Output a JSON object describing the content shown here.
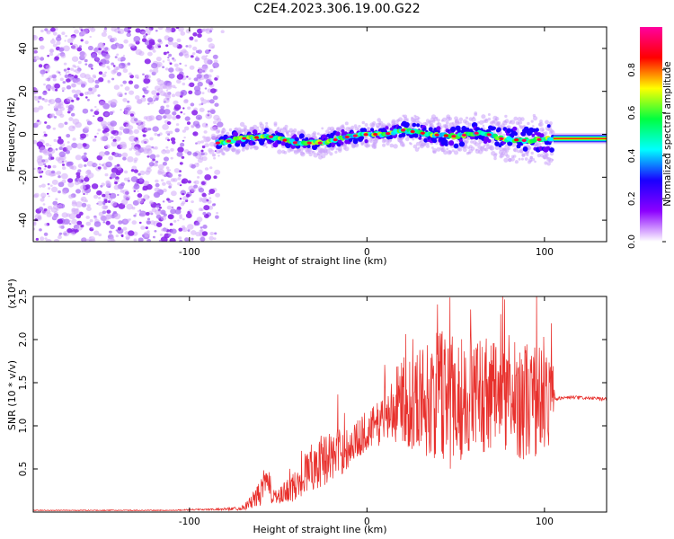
{
  "title": "C2E4.2023.306.19.00.G22",
  "chart_data": [
    {
      "type": "heatmap",
      "xlabel": "Height of straight line (km)",
      "ylabel": "Frequency (Hz)",
      "xlim": [
        -188,
        135
      ],
      "ylim": [
        -50,
        50
      ],
      "x_ticks": [
        -100,
        0,
        100
      ],
      "y_ticks": [
        -40,
        -20,
        0,
        20,
        40
      ],
      "colorbar": {
        "label": "Normalized spectral amplitude",
        "range": [
          0,
          1
        ],
        "ticks": [
          "0.0",
          "0.2",
          "0.4",
          "0.6",
          "0.8"
        ],
        "tick_values": [
          0.0,
          0.2,
          0.4,
          0.6,
          0.8
        ],
        "stops": [
          "#ffffff",
          "#8c00ff",
          "#1a00ff",
          "#00ffff",
          "#00ff40",
          "#ffff00",
          "#ff0000",
          "#ff00a0"
        ]
      },
      "noise_region": {
        "x_range": [
          -188,
          -84
        ],
        "frequency_range": [
          -50,
          50
        ]
      },
      "signal_track": {
        "x": [
          -84,
          -70,
          -55,
          -40,
          -25,
          -10,
          0,
          10,
          20,
          35,
          50,
          65,
          75,
          90,
          105,
          135
        ],
        "frequency": [
          -4,
          -2,
          -1,
          -4,
          -4,
          -1,
          0,
          0,
          2,
          0,
          -1,
          1,
          -2,
          -3,
          -2,
          -2
        ]
      }
    },
    {
      "type": "line",
      "xlabel": "Height of straight line (km)",
      "ylabel": "SNR (10 * v/v)",
      "y_multiplier": "(x10⁴)",
      "xlim": [
        -188,
        135
      ],
      "ylim": [
        0,
        2.5
      ],
      "x_ticks": [
        -100,
        0,
        100
      ],
      "y_ticks": [
        "0.5",
        "1.0",
        "1.5",
        "2.0",
        "2.5"
      ],
      "y_tick_values": [
        0.5,
        1.0,
        1.5,
        2.0,
        2.5
      ],
      "series_color": "#e8302c",
      "series": [
        {
          "x": [
            -188,
            -170,
            -150,
            -130,
            -110,
            -95,
            -85,
            -75,
            -70,
            -65,
            -60,
            -57,
            -54,
            -50,
            -45,
            -40,
            -35,
            -30,
            -25,
            -20,
            -15,
            -10,
            -5,
            0,
            5,
            10,
            15,
            20,
            25,
            30,
            35,
            40,
            45,
            50,
            55,
            60,
            65,
            70,
            75,
            80,
            85,
            90,
            95,
            100,
            103,
            106,
            108,
            115,
            125,
            135
          ],
          "y": [
            0.02,
            0.02,
            0.02,
            0.02,
            0.02,
            0.03,
            0.03,
            0.04,
            0.05,
            0.12,
            0.22,
            0.35,
            0.25,
            0.15,
            0.25,
            0.3,
            0.45,
            0.55,
            0.6,
            0.65,
            0.7,
            0.75,
            0.85,
            0.95,
            1.0,
            1.1,
            1.2,
            1.3,
            1.28,
            1.33,
            1.3,
            1.35,
            1.4,
            1.35,
            1.32,
            1.35,
            1.4,
            1.35,
            1.3,
            1.3,
            1.32,
            1.3,
            1.3,
            1.3,
            1.35,
            1.3,
            1.32,
            1.33,
            1.32,
            1.31
          ],
          "spread": [
            0.005,
            0.005,
            0.005,
            0.005,
            0.005,
            0.01,
            0.01,
            0.02,
            0.03,
            0.08,
            0.15,
            0.22,
            0.15,
            0.1,
            0.15,
            0.18,
            0.25,
            0.3,
            0.3,
            0.3,
            0.28,
            0.25,
            0.22,
            0.25,
            0.25,
            0.3,
            0.4,
            0.5,
            0.55,
            0.6,
            0.7,
            0.75,
            0.9,
            0.85,
            0.7,
            0.6,
            0.7,
            0.7,
            0.7,
            0.6,
            0.7,
            0.7,
            0.7,
            0.6,
            0.6,
            0.03,
            0.02,
            0.02,
            0.02,
            0.02
          ]
        }
      ]
    }
  ]
}
